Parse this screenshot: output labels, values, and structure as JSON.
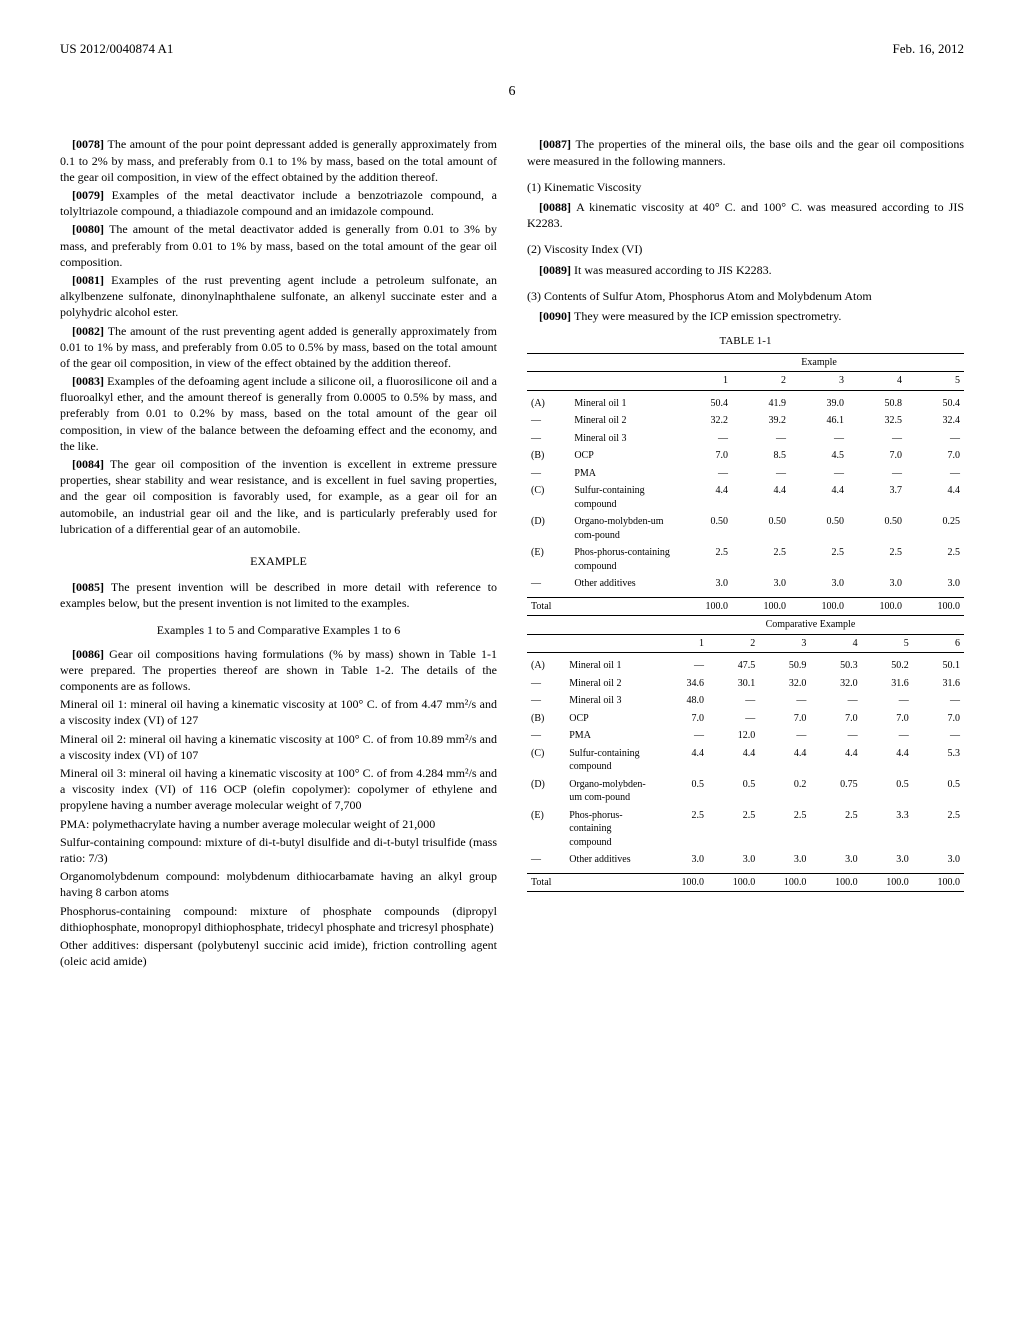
{
  "header": {
    "left": "US 2012/0040874 A1",
    "right": "Feb. 16, 2012",
    "pageNum": "6"
  },
  "left": {
    "p0078": "The amount of the pour point depressant added is generally approximately from 0.1 to 2% by mass, and preferably from 0.1 to 1% by mass, based on the total amount of the gear oil composition, in view of the effect obtained by the addition thereof.",
    "p0079": "Examples of the metal deactivator include a benzotriazole compound, a tolyltriazole compound, a thiadiazole compound and an imidazole compound.",
    "p0080": "The amount of the metal deactivator added is generally from 0.01 to 3% by mass, and preferably from 0.01 to 1% by mass, based on the total amount of the gear oil composition.",
    "p0081": "Examples of the rust preventing agent include a petroleum sulfonate, an alkylbenzene sulfonate, dinonylnaphthalene sulfonate, an alkenyl succinate ester and a polyhydric alcohol ester.",
    "p0082": "The amount of the rust preventing agent added is generally approximately from 0.01 to 1% by mass, and preferably from 0.05 to 0.5% by mass, based on the total amount of the gear oil composition, in view of the effect obtained by the addition thereof.",
    "p0083": "Examples of the defoaming agent include a silicone oil, a fluorosilicone oil and a fluoroalkyl ether, and the amount thereof is generally from 0.0005 to 0.5% by mass, and preferably from 0.01 to 0.2% by mass, based on the total amount of the gear oil composition, in view of the balance between the defoaming effect and the economy, and the like.",
    "p0084": "The gear oil composition of the invention is excellent in extreme pressure properties, shear stability and wear resistance, and is excellent in fuel saving properties, and the gear oil composition is favorably used, for example, as a gear oil for an automobile, an industrial gear oil and the like, and is particularly preferably used for lubrication of a differential gear of an automobile.",
    "exampleHead": "EXAMPLE",
    "p0085": "The present invention will be described in more detail with reference to examples below, but the present invention is not limited to the examples.",
    "ex15Head": "Examples 1 to 5 and Comparative Examples 1 to 6",
    "p0086": "Gear oil compositions having formulations (% by mass) shown in Table 1-1 were prepared. The properties thereof are shown in Table 1-2. The details of the components are as follows.",
    "mo1": "Mineral oil 1: mineral oil having a kinematic viscosity at 100° C. of from 4.47 mm²/s and a viscosity index (VI) of 127",
    "mo2": "Mineral oil 2: mineral oil having a kinematic viscosity at 100° C. of from 10.89 mm²/s and a viscosity index (VI) of 107",
    "mo3": "Mineral oil 3: mineral oil having a kinematic viscosity at 100° C. of from 4.284 mm²/s and a viscosity index (VI) of 116 OCP (olefin copolymer): copolymer of ethylene and propylene having a number average molecular weight of 7,700",
    "pma": "PMA: polymethacrylate having a number average molecular weight of 21,000",
    "sulfur": "Sulfur-containing compound: mixture of di-t-butyl disulfide and di-t-butyl trisulfide (mass ratio: 7/3)",
    "organo": "Organomolybdenum compound: molybdenum dithiocarbamate having an alkyl group having 8 carbon atoms",
    "phos": "Phosphorus-containing compound: mixture of phosphate compounds (dipropyl dithiophosphate, monopropyl dithiophosphate, tridecyl phosphate and tricresyl phosphate)",
    "other": "Other additives: dispersant (polybutenyl succinic acid imide), friction controlling agent (oleic acid amide)"
  },
  "right": {
    "p0087": "The properties of the mineral oils, the base oils and the gear oil compositions were measured in the following manners.",
    "m1head": "(1) Kinematic Viscosity",
    "p0088": "A kinematic viscosity at 40° C. and 100° C. was measured according to JIS K2283.",
    "m2head": "(2) Viscosity Index (VI)",
    "p0089": "It was measured according to JIS K2283.",
    "m3head": "(3) Contents of Sulfur Atom, Phosphorus Atom and Molybdenum Atom",
    "p0090": "They were measured by the ICP emission spectrometry."
  },
  "table": {
    "title": "TABLE 1-1",
    "exampleLabel": "Example",
    "compLabel": "Comparative Example",
    "rowLabels": {
      "A": "(A)",
      "B": "(B)",
      "C": "(C)",
      "D": "(D)",
      "E": "(E)",
      "dash": "—"
    },
    "rowNames": {
      "mo1": "Mineral oil 1",
      "mo2": "Mineral oil 2",
      "mo3": "Mineral oil 3",
      "ocp": "OCP",
      "pma": "PMA",
      "sulf": "Sulfur-containing compound",
      "organo": "Organo-molybden-um com-pound",
      "phos": "Phos-phorus-containing compound",
      "other": "Other additives",
      "total": "Total"
    },
    "ex": {
      "cols": [
        "1",
        "2",
        "3",
        "4",
        "5"
      ],
      "mo1": [
        "50.4",
        "41.9",
        "39.0",
        "50.8",
        "50.4"
      ],
      "mo2": [
        "32.2",
        "39.2",
        "46.1",
        "32.5",
        "32.4"
      ],
      "mo3": [
        "—",
        "—",
        "—",
        "—",
        "—"
      ],
      "ocp": [
        "7.0",
        "8.5",
        "4.5",
        "7.0",
        "7.0"
      ],
      "pma": [
        "—",
        "—",
        "—",
        "—",
        "—"
      ],
      "sulf": [
        "4.4",
        "4.4",
        "4.4",
        "3.7",
        "4.4"
      ],
      "organo": [
        "0.50",
        "0.50",
        "0.50",
        "0.50",
        "0.25"
      ],
      "phos": [
        "2.5",
        "2.5",
        "2.5",
        "2.5",
        "2.5"
      ],
      "other": [
        "3.0",
        "3.0",
        "3.0",
        "3.0",
        "3.0"
      ],
      "total": [
        "100.0",
        "100.0",
        "100.0",
        "100.0",
        "100.0"
      ]
    },
    "comp": {
      "cols": [
        "1",
        "2",
        "3",
        "4",
        "5",
        "6"
      ],
      "mo1": [
        "—",
        "47.5",
        "50.9",
        "50.3",
        "50.2",
        "50.1"
      ],
      "mo2": [
        "34.6",
        "30.1",
        "32.0",
        "32.0",
        "31.6",
        "31.6"
      ],
      "mo3": [
        "48.0",
        "—",
        "—",
        "—",
        "—",
        "—"
      ],
      "ocp": [
        "7.0",
        "—",
        "7.0",
        "7.0",
        "7.0",
        "7.0"
      ],
      "pma": [
        "—",
        "12.0",
        "—",
        "—",
        "—",
        "—"
      ],
      "sulf": [
        "4.4",
        "4.4",
        "4.4",
        "4.4",
        "4.4",
        "5.3"
      ],
      "organo": [
        "0.5",
        "0.5",
        "0.2",
        "0.75",
        "0.5",
        "0.5"
      ],
      "phos": [
        "2.5",
        "2.5",
        "2.5",
        "2.5",
        "3.3",
        "2.5"
      ],
      "other": [
        "3.0",
        "3.0",
        "3.0",
        "3.0",
        "3.0",
        "3.0"
      ],
      "total": [
        "100.0",
        "100.0",
        "100.0",
        "100.0",
        "100.0",
        "100.0"
      ]
    }
  }
}
